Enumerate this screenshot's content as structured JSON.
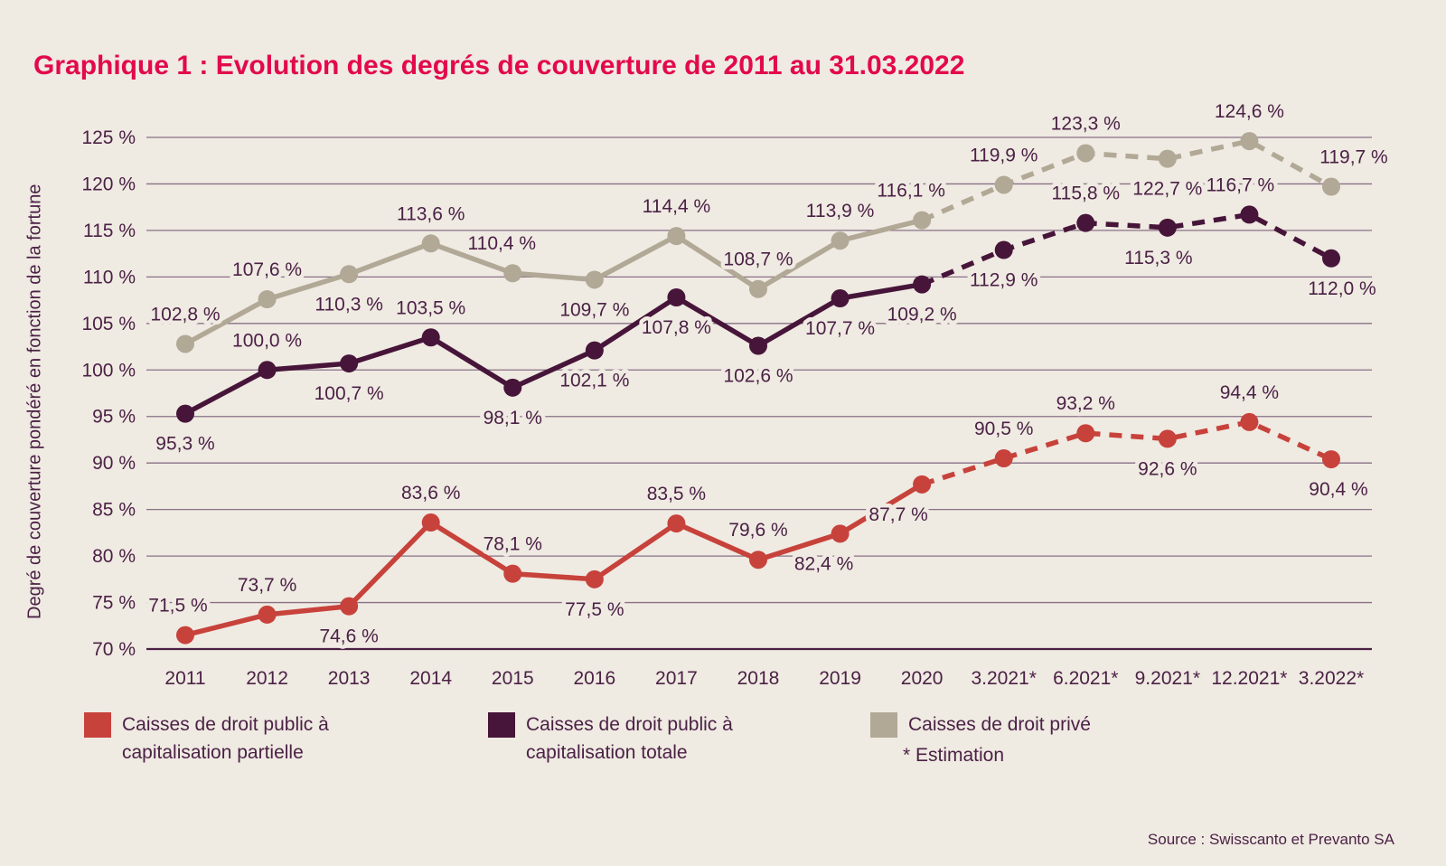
{
  "page": {
    "title": "Graphique 1 : Evolution des degrés de couverture de 2011 au 31.03.2022",
    "title_color": "#e2094c",
    "background_color": "#efeae2",
    "text_color": "#4b2145",
    "gridline_color": "#8a7186",
    "axisline_color": "#4a2144",
    "source": "Source : Swisscanto et Prevanto SA"
  },
  "chart_data": {
    "type": "line",
    "title": "Graphique 1 : Evolution des degrés de couverture de 2011 au 31.03.2022",
    "xlabel": "",
    "ylabel": "Degré de couverture pondéré en fonction de la fortune",
    "ylim": [
      70,
      125
    ],
    "grid": true,
    "legend_position": "bottom",
    "footnote": "* Estimation",
    "estimation_from_index": 9,
    "categories": [
      "2011",
      "2012",
      "2013",
      "2014",
      "2015",
      "2016",
      "2017",
      "2018",
      "2019",
      "2020",
      "3.2021*",
      "6.2021*",
      "9.2021*",
      "12.2021*",
      "3.2022*"
    ],
    "yticks": [
      {
        "v": 125,
        "label": "125 %"
      },
      {
        "v": 120,
        "label": "120 %"
      },
      {
        "v": 115,
        "label": "115 %"
      },
      {
        "v": 110,
        "label": "110 %"
      },
      {
        "v": 105,
        "label": "105 %"
      },
      {
        "v": 100,
        "label": "100 %"
      },
      {
        "v": 95,
        "label": "95 %"
      },
      {
        "v": 90,
        "label": "90 %"
      },
      {
        "v": 85,
        "label": "85 %"
      },
      {
        "v": 80,
        "label": "80 %"
      },
      {
        "v": 75,
        "label": "75 %"
      },
      {
        "v": 70,
        "label": "70 %"
      }
    ],
    "series": [
      {
        "name": "Caisses de droit public à capitalisation partielle",
        "legend_lines": [
          "Caisses de droit public à",
          "capitalisation partielle"
        ],
        "color": "#c7423b",
        "values": [
          71.5,
          73.7,
          74.6,
          83.6,
          78.1,
          77.5,
          83.5,
          79.6,
          82.4,
          87.7,
          90.5,
          93.2,
          92.6,
          94.4,
          90.4
        ],
        "labels": [
          "71,5 %",
          "73,7 %",
          "74,6 %",
          "83,6 %",
          "78,1 %",
          "77,5 %",
          "83,5 %",
          "79,6 %",
          "82,4 %",
          "87,7 %",
          "90,5 %",
          "93,2 %",
          "92,6 %",
          "94,4 %",
          "90,4 %"
        ],
        "label_pos": [
          "a",
          "a",
          "b",
          "a",
          "a",
          "b",
          "a",
          "a",
          "b",
          "b",
          "a",
          "a",
          "b",
          "a",
          "b"
        ],
        "label_dx": [
          -8,
          0,
          0,
          0,
          0,
          0,
          0,
          0,
          -18,
          -26,
          0,
          0,
          0,
          0,
          8
        ]
      },
      {
        "name": "Caisses de droit public à capitalisation totale",
        "legend_lines": [
          "Caisses de droit public à",
          "capitalisation totale"
        ],
        "color": "#461539",
        "values": [
          95.3,
          100.0,
          100.7,
          103.5,
          98.1,
          102.1,
          107.8,
          102.6,
          107.7,
          109.2,
          112.9,
          115.8,
          115.3,
          116.7,
          112.0
        ],
        "labels": [
          "95,3 %",
          "100,0 %",
          "100,7 %",
          "103,5 %",
          "98,1 %",
          "102,1 %",
          "107,8 %",
          "102,6 %",
          "107,7 %",
          "109,2 %",
          "112,9 %",
          "115,8 %",
          "115,3 %",
          "116,7 %",
          "112,0 %"
        ],
        "label_pos": [
          "b",
          "a",
          "b",
          "a",
          "b",
          "b",
          "b",
          "b",
          "b",
          "b",
          "b",
          "a",
          "b",
          "a",
          "b"
        ],
        "label_dx": [
          0,
          0,
          0,
          0,
          0,
          0,
          0,
          0,
          0,
          0,
          0,
          0,
          -10,
          -10,
          12
        ]
      },
      {
        "name": "Caisses de droit privé",
        "legend_lines": [
          "Caisses de droit privé",
          ""
        ],
        "color": "#b1a896",
        "values": [
          102.8,
          107.6,
          110.3,
          113.6,
          110.4,
          109.7,
          114.4,
          108.7,
          113.9,
          116.1,
          119.9,
          123.3,
          122.7,
          124.6,
          119.7
        ],
        "labels": [
          "102,8 %",
          "107,6 %",
          "110,3 %",
          "113,6 %",
          "110,4 %",
          "109,7 %",
          "114,4 %",
          "108,7 %",
          "113,9 %",
          "116,1 %",
          "119,9 %",
          "123,3 %",
          "122,7 %",
          "124,6 %",
          "119,7 %"
        ],
        "label_pos": [
          "a",
          "a",
          "b",
          "a",
          "a",
          "b",
          "a",
          "a",
          "a",
          "a",
          "a",
          "a",
          "b",
          "a",
          "a"
        ],
        "label_dx": [
          0,
          0,
          0,
          0,
          -12,
          0,
          0,
          0,
          0,
          -12,
          0,
          0,
          0,
          0,
          25
        ]
      }
    ]
  }
}
